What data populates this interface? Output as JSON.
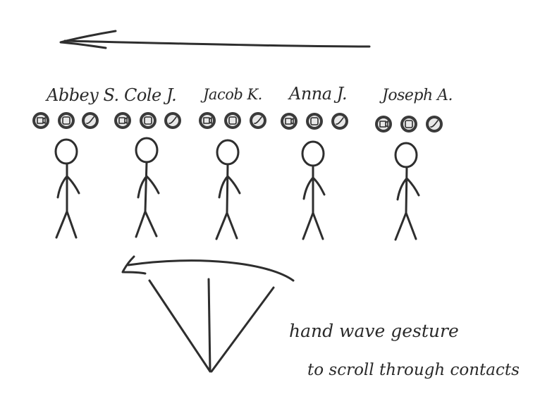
{
  "scroll_hint_arrow": "arrow pointing left",
  "contacts": [
    {
      "name": "Abbey S.",
      "actions": [
        "video-call-icon",
        "message-icon",
        "phone-icon"
      ]
    },
    {
      "name": "Cole J.",
      "actions": [
        "video-call-icon",
        "message-icon",
        "phone-icon"
      ]
    },
    {
      "name": "Jacob K.",
      "actions": [
        "video-call-icon",
        "message-icon",
        "phone-icon"
      ]
    },
    {
      "name": "Anna J.",
      "actions": [
        "video-call-icon",
        "message-icon",
        "phone-icon"
      ]
    },
    {
      "name": "Joseph A.",
      "actions": [
        "video-call-icon",
        "message-icon",
        "phone-icon"
      ]
    }
  ],
  "gesture_note": {
    "line1": "hand wave gesture",
    "line2": "to scroll through contacts"
  }
}
